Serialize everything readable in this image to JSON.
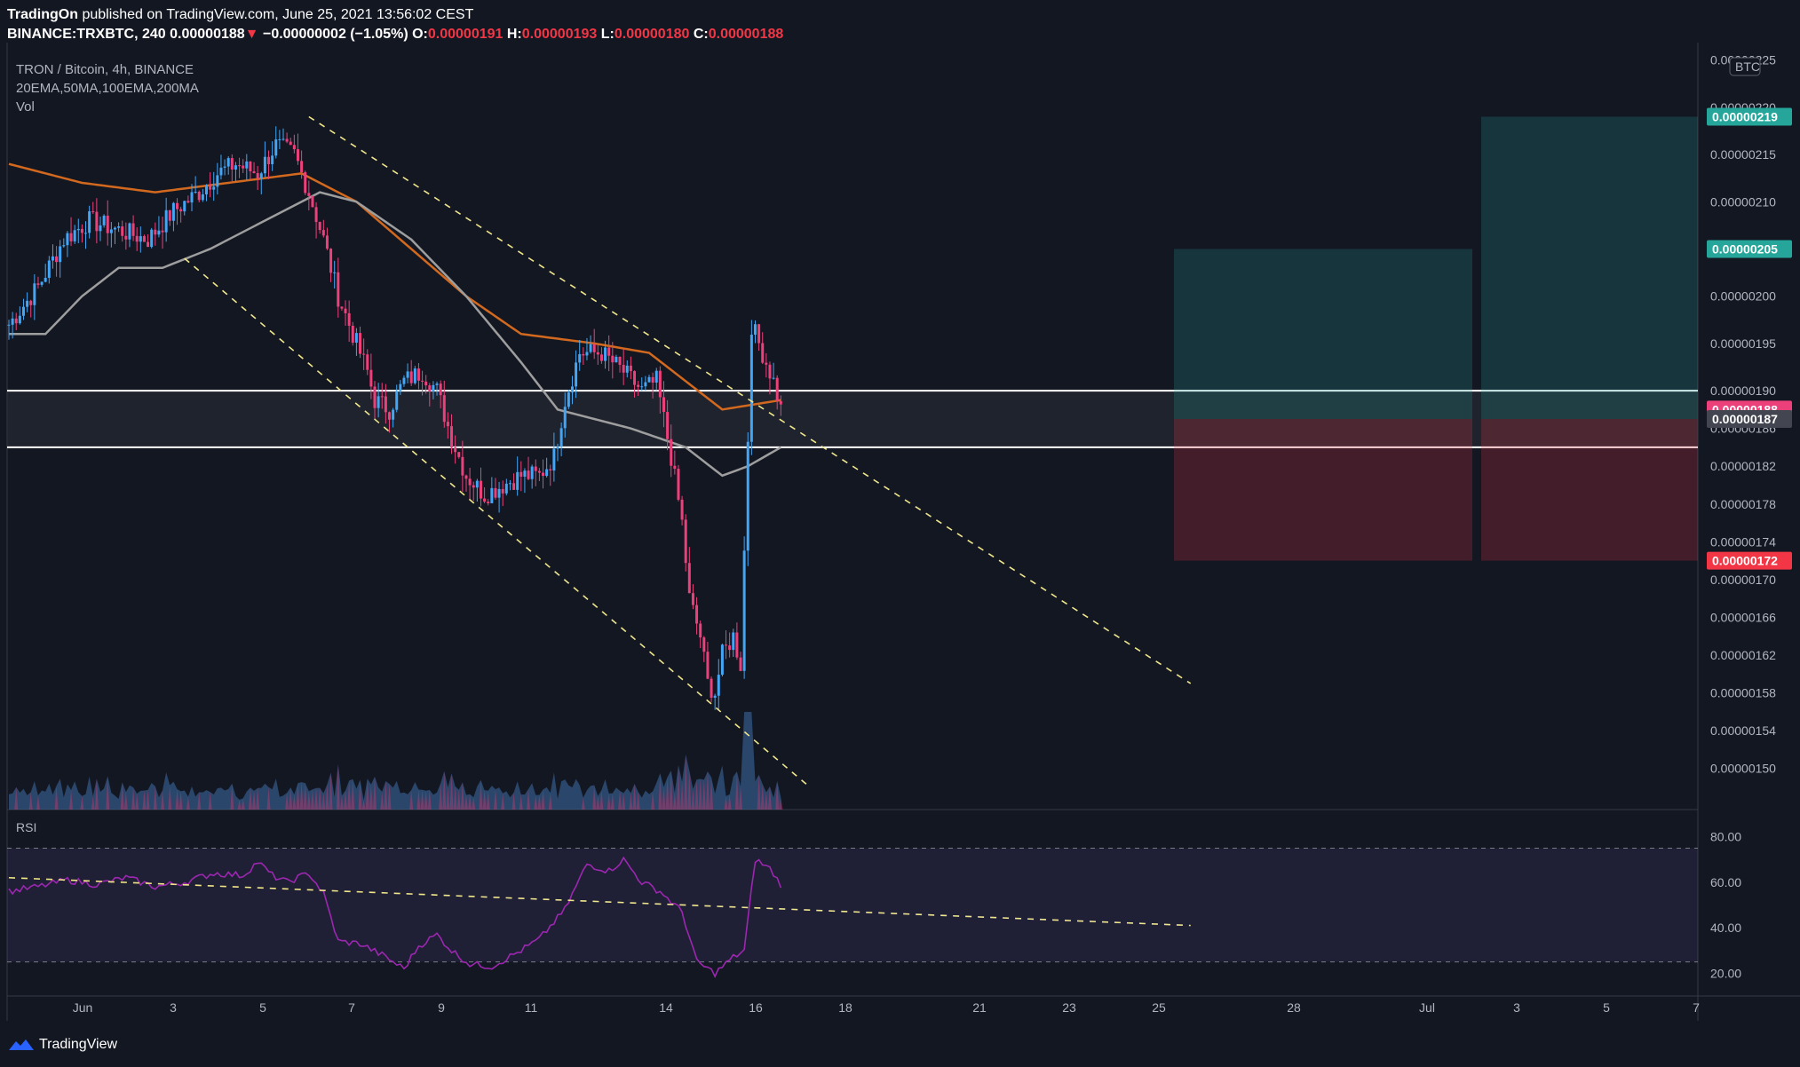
{
  "header": {
    "publisher": "TradingOn",
    "published_text": "published on TradingView.com, June 25, 2021 13:56:02 CEST",
    "symbol": "BINANCE:TRXBTC, 240",
    "last": "0.00000188",
    "change": "−0.00000002 (−1.05%)",
    "o_label": "O:",
    "o_value": "0.00000191",
    "h_label": "H:",
    "h_value": "0.00000193",
    "l_label": "L:",
    "l_value": "0.00000180",
    "c_label": "C:",
    "c_value": "0.00000188"
  },
  "legend": {
    "title": "TRON / Bitcoin, 4h, BINANCE",
    "indicators": "20EMA,50MA,100EMA,200MA",
    "volume": "Vol"
  },
  "footer": {
    "brand": "TradingView"
  },
  "colors": {
    "background": "#131722",
    "up": "#42a5f5",
    "down": "#ec407a",
    "ema": "#d2691e",
    "ma": "#9e9e9e",
    "rsi": "#9c27b0",
    "target": "#26a69a",
    "stop": "#f23645"
  },
  "chart_data": [
    {
      "type": "candlestick",
      "title": "TRON / Bitcoin, 4h, BINANCE",
      "y_unit": "BTC",
      "ylim": [
        1.48e-06,
        2.26e-06
      ],
      "y_ticks": [
        "0.00000225",
        "0.00000220",
        "0.00000215",
        "0.00000210",
        "0.00000205",
        "0.00000200",
        "0.00000195",
        "0.00000190",
        "0.00000186",
        "0.00000182",
        "0.00000178",
        "0.00000174",
        "0.00000170",
        "0.00000166",
        "0.00000162",
        "0.00000158",
        "0.00000154",
        "0.00000150"
      ],
      "x_ticks": [
        "Jun",
        "3",
        "5",
        "7",
        "9",
        "11",
        "14",
        "16",
        "18",
        "21",
        "23",
        "25",
        "28",
        "Jul",
        "3",
        "5",
        "7"
      ],
      "price_tags": [
        {
          "label": "0.00000219",
          "value": 2.19e-06,
          "color": "#26a69a"
        },
        {
          "label": "0.00000205",
          "value": 2.05e-06,
          "color": "#26a69a"
        },
        {
          "label": "0.00000188",
          "value": 1.88e-06,
          "color": "#ec407a"
        },
        {
          "label": "0.00000187",
          "value": 1.87e-06,
          "color": "#434651"
        },
        {
          "label": "0.00000172",
          "value": 1.72e-06,
          "color": "#f23645"
        }
      ],
      "axis_unit_badge": "BTC",
      "support_zone": [
        1.84e-06,
        1.9e-06
      ],
      "trades": [
        {
          "entry": 1.87e-06,
          "target": 2.05e-06,
          "stop": 1.72e-06
        },
        {
          "entry": 1.87e-06,
          "target": 2.19e-06,
          "stop": 1.72e-06
        }
      ],
      "close_anchors": [
        [
          0,
          1.97e-06
        ],
        [
          8,
          2.01e-06
        ],
        [
          15,
          2.06e-06
        ],
        [
          22,
          2.08e-06
        ],
        [
          30,
          2.07e-06
        ],
        [
          38,
          2.06e-06
        ],
        [
          45,
          2.09e-06
        ],
        [
          52,
          2.11e-06
        ],
        [
          57,
          2.13e-06
        ],
        [
          62,
          2.14e-06
        ],
        [
          68,
          2.13e-06
        ],
        [
          73,
          2.16e-06
        ],
        [
          78,
          2.15e-06
        ],
        [
          82,
          2.11e-06
        ],
        [
          86,
          2.06e-06
        ],
        [
          90,
          2e-06
        ],
        [
          94,
          1.96e-06
        ],
        [
          98,
          1.92e-06
        ],
        [
          100,
          1.89e-06
        ],
        [
          104,
          1.88e-06
        ],
        [
          108,
          1.91e-06
        ],
        [
          113,
          1.92e-06
        ],
        [
          117,
          1.9e-06
        ],
        [
          121,
          1.85e-06
        ],
        [
          125,
          1.81e-06
        ],
        [
          130,
          1.79e-06
        ],
        [
          135,
          1.8e-06
        ],
        [
          140,
          1.81e-06
        ],
        [
          145,
          1.81e-06
        ],
        [
          149,
          1.83e-06
        ],
        [
          152,
          1.89e-06
        ],
        [
          156,
          1.94e-06
        ],
        [
          162,
          1.94e-06
        ],
        [
          168,
          1.92e-06
        ],
        [
          173,
          1.9e-06
        ],
        [
          177,
          1.91e-06
        ],
        [
          181,
          1.83e-06
        ],
        [
          184,
          1.76e-06
        ],
        [
          186,
          1.68e-06
        ],
        [
          189,
          1.64e-06
        ],
        [
          191,
          1.59e-06
        ],
        [
          193,
          1.58e-06
        ],
        [
          195,
          1.62e-06
        ],
        [
          198,
          1.64e-06
        ],
        [
          200,
          1.61e-06
        ],
        [
          201,
          1.73e-06
        ],
        [
          203,
          1.97e-06
        ],
        [
          206,
          1.94e-06
        ],
        [
          209,
          1.91e-06
        ],
        [
          211,
          1.88e-06
        ]
      ],
      "ema_100": [
        [
          0,
          2.14e-06
        ],
        [
          20,
          2.12e-06
        ],
        [
          40,
          2.11e-06
        ],
        [
          60,
          2.12e-06
        ],
        [
          80,
          2.13e-06
        ],
        [
          95,
          2.1e-06
        ],
        [
          110,
          2.05e-06
        ],
        [
          125,
          2e-06
        ],
        [
          140,
          1.96e-06
        ],
        [
          160,
          1.95e-06
        ],
        [
          175,
          1.94e-06
        ],
        [
          185,
          1.91e-06
        ],
        [
          195,
          1.88e-06
        ],
        [
          211,
          1.89e-06
        ]
      ],
      "ma_200": [
        [
          0,
          1.96e-06
        ],
        [
          10,
          1.96e-06
        ],
        [
          20,
          2e-06
        ],
        [
          30,
          2.03e-06
        ],
        [
          42,
          2.03e-06
        ],
        [
          55,
          2.05e-06
        ],
        [
          70,
          2.08e-06
        ],
        [
          85,
          2.11e-06
        ],
        [
          95,
          2.1e-06
        ],
        [
          110,
          2.06e-06
        ],
        [
          125,
          2e-06
        ],
        [
          140,
          1.93e-06
        ],
        [
          150,
          1.88e-06
        ],
        [
          170,
          1.86e-06
        ],
        [
          185,
          1.84e-06
        ],
        [
          195,
          1.81e-06
        ],
        [
          202,
          1.82e-06
        ],
        [
          211,
          1.84e-06
        ]
      ],
      "trendlines": [
        {
          "from": [
            82,
            2.19e-06
          ],
          "to": [
            323,
            1.59e-06
          ],
          "style": "dashed"
        },
        {
          "from": [
            48,
            2.04e-06
          ],
          "to": [
            219,
            1.48e-06
          ],
          "style": "dashed"
        }
      ],
      "volume_series": "area"
    },
    {
      "type": "line",
      "title": "RSI",
      "ylim": [
        10,
        90
      ],
      "y_ticks": [
        "80.00",
        "60.00",
        "40.00",
        "20.00"
      ],
      "bands": [
        25,
        75
      ],
      "series_anchors": [
        [
          0,
          56
        ],
        [
          8,
          58
        ],
        [
          16,
          61
        ],
        [
          24,
          59
        ],
        [
          32,
          62
        ],
        [
          40,
          58
        ],
        [
          48,
          60
        ],
        [
          56,
          64
        ],
        [
          64,
          63
        ],
        [
          68,
          69
        ],
        [
          72,
          63
        ],
        [
          76,
          60
        ],
        [
          82,
          64
        ],
        [
          86,
          55
        ],
        [
          90,
          34
        ],
        [
          96,
          33
        ],
        [
          102,
          28
        ],
        [
          108,
          22
        ],
        [
          112,
          32
        ],
        [
          117,
          37
        ],
        [
          121,
          30
        ],
        [
          126,
          24
        ],
        [
          132,
          23
        ],
        [
          140,
          30
        ],
        [
          145,
          35
        ],
        [
          152,
          48
        ],
        [
          158,
          68
        ],
        [
          164,
          65
        ],
        [
          168,
          70
        ],
        [
          173,
          60
        ],
        [
          178,
          56
        ],
        [
          184,
          47
        ],
        [
          188,
          25
        ],
        [
          193,
          20
        ],
        [
          198,
          27
        ],
        [
          201,
          30
        ],
        [
          204,
          70
        ],
        [
          208,
          66
        ],
        [
          211,
          59
        ]
      ],
      "trendline": {
        "from": [
          0,
          62
        ],
        "to": [
          323,
          41
        ],
        "style": "dashed"
      }
    }
  ]
}
